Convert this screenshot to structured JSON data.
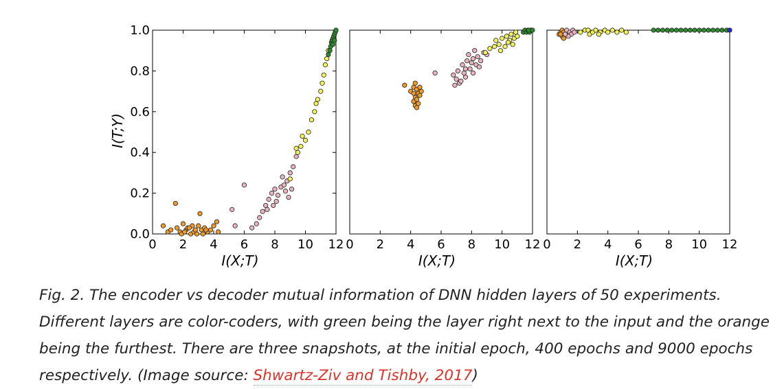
{
  "colors": {
    "green": "#2e8b2e",
    "yellow": "#f2f25a",
    "pink": "#e8b4c0",
    "orange": "#ef9a2a",
    "blue": "#2a2ad0",
    "link": "#d9342b"
  },
  "caption": {
    "text": "Fig. 2. The encoder vs decoder mutual information of DNN hidden layers of 50 experiments. Different layers are color-coders, with green being the layer right next to the input and the orange being the furthest. There are three snapshots, at the initial epoch, 400 epochs and 9000 epochs respectively. (Image source: ",
    "link_text": "Shwartz-Ziv and Tishby, 2017",
    "suffix": ")"
  },
  "chart_data": [
    {
      "type": "scatter",
      "xlabel": "I(X;T)",
      "ylabel": "I(T;Y)",
      "xlim": [
        0,
        12
      ],
      "ylim": [
        0,
        1
      ],
      "xticks": [
        "0",
        "2",
        "4",
        "6",
        "8",
        "10",
        "12"
      ],
      "yticks": [
        "0.0",
        "0.2",
        "0.4",
        "0.6",
        "0.8",
        "1.0"
      ],
      "series": [
        {
          "color": "orange",
          "points": [
            [
              0.7,
              0.04
            ],
            [
              1.0,
              0.01
            ],
            [
              1.2,
              0.02
            ],
            [
              1.5,
              0.15
            ],
            [
              1.6,
              0.03
            ],
            [
              1.8,
              0.01
            ],
            [
              2.0,
              0.05
            ],
            [
              2.2,
              0.02
            ],
            [
              2.3,
              0.03
            ],
            [
              2.5,
              0.0
            ],
            [
              2.6,
              0.04
            ],
            [
              2.7,
              0.01
            ],
            [
              2.8,
              0.02
            ],
            [
              3.0,
              0.04
            ],
            [
              3.1,
              0.1
            ],
            [
              3.2,
              0.02
            ],
            [
              3.3,
              0.0
            ],
            [
              3.4,
              0.03
            ],
            [
              3.6,
              0.01
            ],
            [
              3.8,
              0.02
            ],
            [
              4.0,
              0.04
            ],
            [
              4.2,
              0.06
            ],
            [
              4.3,
              0.01
            ],
            [
              1.9,
              0.0
            ],
            [
              2.1,
              0.01
            ],
            [
              2.9,
              0.0
            ],
            [
              3.5,
              0.02
            ],
            [
              2.4,
              0.03
            ]
          ]
        },
        {
          "color": "pink",
          "points": [
            [
              5.2,
              0.12
            ],
            [
              6.0,
              0.24
            ],
            [
              5.4,
              0.04
            ],
            [
              6.5,
              0.03
            ],
            [
              6.8,
              0.05
            ],
            [
              7.0,
              0.08
            ],
            [
              7.2,
              0.11
            ],
            [
              7.4,
              0.14
            ],
            [
              7.6,
              0.17
            ],
            [
              7.8,
              0.2
            ],
            [
              8.0,
              0.22
            ],
            [
              8.2,
              0.19
            ],
            [
              8.4,
              0.23
            ],
            [
              8.5,
              0.28
            ],
            [
              8.7,
              0.21
            ],
            [
              8.8,
              0.26
            ],
            [
              9.0,
              0.3
            ],
            [
              9.2,
              0.33
            ],
            [
              9.4,
              0.38
            ],
            [
              7.5,
              0.12
            ],
            [
              8.1,
              0.16
            ],
            [
              8.9,
              0.18
            ],
            [
              7.9,
              0.14
            ],
            [
              8.6,
              0.24
            ],
            [
              9.1,
              0.22
            ]
          ]
        },
        {
          "color": "yellow",
          "points": [
            [
              9.0,
              0.27
            ],
            [
              9.5,
              0.4
            ],
            [
              9.7,
              0.43
            ],
            [
              10.0,
              0.46
            ],
            [
              10.2,
              0.5
            ],
            [
              10.4,
              0.56
            ],
            [
              10.6,
              0.6
            ],
            [
              10.8,
              0.66
            ],
            [
              11.0,
              0.7
            ],
            [
              11.1,
              0.74
            ],
            [
              11.2,
              0.78
            ],
            [
              11.3,
              0.83
            ],
            [
              11.4,
              0.86
            ],
            [
              11.5,
              0.9
            ],
            [
              9.4,
              0.42
            ],
            [
              9.8,
              0.48
            ],
            [
              10.7,
              0.64
            ]
          ]
        },
        {
          "color": "green",
          "points": [
            [
              11.5,
              0.88
            ],
            [
              11.6,
              0.9
            ],
            [
              11.65,
              0.92
            ],
            [
              11.7,
              0.94
            ],
            [
              11.75,
              0.95
            ],
            [
              11.8,
              0.96
            ],
            [
              11.85,
              0.97
            ],
            [
              11.9,
              0.98
            ],
            [
              11.95,
              0.99
            ],
            [
              12.0,
              1.0
            ],
            [
              11.8,
              0.93
            ],
            [
              11.9,
              0.95
            ]
          ]
        }
      ]
    },
    {
      "type": "scatter",
      "xlabel": "I(X;T)",
      "ylabel": "",
      "xlim": [
        0,
        12
      ],
      "ylim": [
        0,
        1
      ],
      "xticks": [
        "0",
        "2",
        "4",
        "6",
        "8",
        "10",
        "12"
      ],
      "yticks": [],
      "series": [
        {
          "color": "orange",
          "points": [
            [
              3.6,
              0.73
            ],
            [
              4.0,
              0.7
            ],
            [
              4.2,
              0.72
            ],
            [
              4.3,
              0.74
            ],
            [
              4.4,
              0.71
            ],
            [
              4.5,
              0.69
            ],
            [
              4.6,
              0.72
            ],
            [
              4.3,
              0.67
            ],
            [
              4.2,
              0.65
            ],
            [
              4.4,
              0.66
            ],
            [
              4.6,
              0.68
            ],
            [
              4.3,
              0.63
            ],
            [
              4.5,
              0.64
            ],
            [
              4.2,
              0.69
            ],
            [
              4.7,
              0.7
            ],
            [
              4.4,
              0.62
            ]
          ]
        },
        {
          "color": "pink",
          "points": [
            [
              5.6,
              0.79
            ],
            [
              6.8,
              0.78
            ],
            [
              6.9,
              0.73
            ],
            [
              7.0,
              0.76
            ],
            [
              7.1,
              0.8
            ],
            [
              7.2,
              0.74
            ],
            [
              7.4,
              0.83
            ],
            [
              7.5,
              0.79
            ],
            [
              7.6,
              0.77
            ],
            [
              7.7,
              0.85
            ],
            [
              7.8,
              0.88
            ],
            [
              7.9,
              0.81
            ],
            [
              8.0,
              0.84
            ],
            [
              8.1,
              0.86
            ],
            [
              8.2,
              0.9
            ],
            [
              8.3,
              0.83
            ],
            [
              8.4,
              0.87
            ],
            [
              8.5,
              0.82
            ],
            [
              8.6,
              0.85
            ],
            [
              8.8,
              0.89
            ],
            [
              9.0,
              0.88
            ],
            [
              7.3,
              0.75
            ],
            [
              7.6,
              0.81
            ],
            [
              8.1,
              0.79
            ]
          ]
        },
        {
          "color": "yellow",
          "points": [
            [
              8.9,
              0.89
            ],
            [
              9.2,
              0.91
            ],
            [
              9.5,
              0.92
            ],
            [
              9.6,
              0.95
            ],
            [
              9.8,
              0.93
            ],
            [
              10.0,
              0.96
            ],
            [
              10.2,
              0.92
            ],
            [
              10.3,
              0.97
            ],
            [
              10.5,
              0.95
            ],
            [
              10.6,
              0.98
            ],
            [
              10.8,
              0.96
            ],
            [
              10.9,
              0.99
            ],
            [
              11.0,
              0.97
            ],
            [
              10.4,
              0.94
            ],
            [
              9.9,
              0.9
            ],
            [
              10.7,
              0.93
            ]
          ]
        },
        {
          "color": "green",
          "points": [
            [
              11.4,
              0.99
            ],
            [
              11.5,
              1.0
            ],
            [
              11.6,
              0.99
            ],
            [
              11.7,
              1.0
            ],
            [
              11.8,
              0.99
            ],
            [
              11.9,
              1.0
            ],
            [
              12.0,
              1.0
            ],
            [
              11.75,
              1.0
            ]
          ]
        }
      ]
    },
    {
      "type": "scatter",
      "xlabel": "I(X;T)",
      "ylabel": "",
      "xlim": [
        0,
        12
      ],
      "ylim": [
        0,
        1
      ],
      "xticks": [
        "0",
        "2",
        "4",
        "6",
        "8",
        "10",
        "12"
      ],
      "yticks": [],
      "series": [
        {
          "color": "orange",
          "points": [
            [
              0.8,
              0.98
            ],
            [
              0.9,
              0.99
            ],
            [
              1.0,
              0.97
            ],
            [
              1.0,
              1.0
            ],
            [
              1.1,
              0.99
            ],
            [
              1.1,
              0.96
            ],
            [
              0.9,
              0.98
            ]
          ]
        },
        {
          "color": "pink",
          "points": [
            [
              1.3,
              1.0
            ],
            [
              1.5,
              0.99
            ],
            [
              1.6,
              0.98
            ],
            [
              1.7,
              1.0
            ],
            [
              1.4,
              0.97
            ],
            [
              1.8,
              0.99
            ],
            [
              1.2,
              0.98
            ]
          ]
        },
        {
          "color": "yellow",
          "points": [
            [
              2.2,
              0.99
            ],
            [
              2.5,
              1.0
            ],
            [
              2.8,
              0.98
            ],
            [
              3.0,
              0.99
            ],
            [
              3.2,
              1.0
            ],
            [
              3.5,
              0.99
            ],
            [
              3.8,
              1.0
            ],
            [
              4.0,
              0.99
            ],
            [
              4.3,
              1.0
            ],
            [
              4.6,
              0.99
            ],
            [
              4.9,
              1.0
            ],
            [
              5.2,
              0.99
            ],
            [
              3.4,
              0.98
            ],
            [
              2.7,
              1.0
            ]
          ]
        },
        {
          "color": "green",
          "points": [
            [
              7.0,
              1.0
            ],
            [
              7.3,
              1.0
            ],
            [
              7.6,
              1.0
            ],
            [
              7.9,
              1.0
            ],
            [
              8.2,
              1.0
            ],
            [
              8.5,
              1.0
            ],
            [
              8.8,
              1.0
            ],
            [
              9.1,
              1.0
            ],
            [
              9.4,
              1.0
            ],
            [
              9.7,
              1.0
            ],
            [
              10.0,
              1.0
            ],
            [
              10.3,
              1.0
            ],
            [
              10.6,
              1.0
            ],
            [
              10.9,
              1.0
            ],
            [
              11.2,
              1.0
            ],
            [
              11.5,
              1.0
            ],
            [
              11.8,
              1.0
            ]
          ]
        },
        {
          "color": "blue",
          "points": [
            [
              12.0,
              1.0
            ]
          ]
        }
      ]
    }
  ]
}
